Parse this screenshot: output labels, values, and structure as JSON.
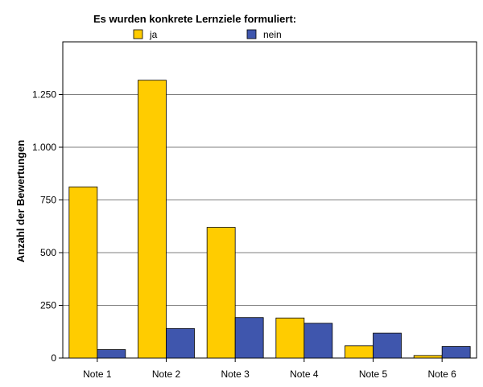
{
  "chart_data": {
    "type": "bar",
    "legend_title": "Es wurden konkrete Lernziele formuliert:",
    "legend_placement": "top",
    "ylabel": "Anzahl der Bewertungen",
    "xlabel": "",
    "categories": [
      "Note 1",
      "Note 2",
      "Note 3",
      "Note 4",
      "Note 5",
      "Note 6"
    ],
    "series": [
      {
        "name": "ja",
        "color": "#ffcc00",
        "values": [
          812,
          1318,
          620,
          190,
          58,
          12
        ]
      },
      {
        "name": "nein",
        "color": "#3f56ad",
        "values": [
          40,
          140,
          192,
          165,
          118,
          55
        ]
      }
    ],
    "ylim": [
      0,
      1500
    ],
    "yticks": [
      0,
      250,
      500,
      750,
      1000,
      1250
    ],
    "ytick_labels": [
      "0",
      "250",
      "500",
      "750",
      "1.000",
      "1.250"
    ],
    "grid": true
  }
}
